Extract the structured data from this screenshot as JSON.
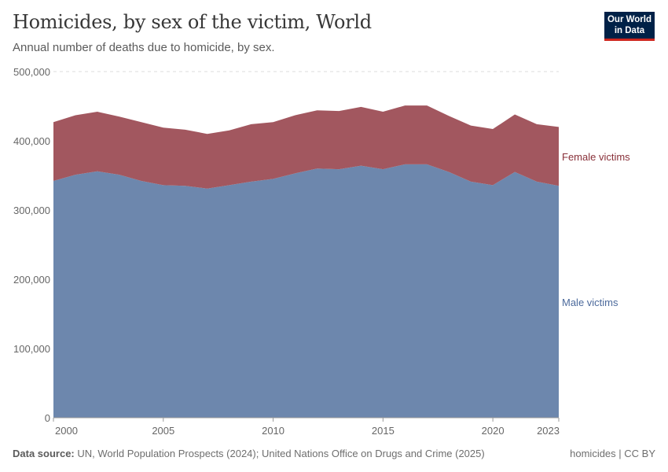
{
  "header": {
    "title": "Homicides, by sex of the victim, World",
    "subtitle": "Annual number of deaths due to homicide, by sex.",
    "logo_text": "Our World in Data"
  },
  "footer": {
    "source_label": "Data source:",
    "source_text": "UN, World Population Prospects (2024); United Nations Office on Drugs and Crime (2025)",
    "license": "homicides | CC BY"
  },
  "chart_data": {
    "type": "area",
    "stacked": true,
    "x": [
      2000,
      2001,
      2002,
      2003,
      2004,
      2005,
      2006,
      2007,
      2008,
      2009,
      2010,
      2011,
      2012,
      2013,
      2014,
      2015,
      2016,
      2017,
      2018,
      2019,
      2020,
      2021,
      2022,
      2023
    ],
    "series": [
      {
        "name": "Male victims",
        "color": "#6d87ad",
        "values": [
          342000,
          351000,
          356000,
          351000,
          342000,
          336000,
          335000,
          331000,
          336000,
          341000,
          345000,
          353000,
          360000,
          359000,
          364000,
          359000,
          366000,
          366000,
          355000,
          341000,
          336000,
          355000,
          341000,
          335000
        ]
      },
      {
        "name": "Female victims",
        "color": "#a2575f",
        "values": [
          85000,
          86000,
          86000,
          84000,
          85000,
          83000,
          81000,
          79000,
          79000,
          83000,
          82000,
          84000,
          84000,
          84000,
          85000,
          83000,
          85000,
          85000,
          81000,
          81000,
          81000,
          83000,
          83000,
          85000
        ]
      }
    ],
    "label_colors": {
      "Male victims": "#4c6a9c",
      "Female victims": "#883039"
    },
    "ylim": [
      0,
      500000
    ],
    "yticks": [
      "0",
      "100,000",
      "200,000",
      "300,000",
      "400,000",
      "500,000"
    ],
    "xticks": [
      "2000",
      "2005",
      "2010",
      "2015",
      "2020",
      "2023"
    ],
    "grid": true,
    "legend": "inline-right"
  }
}
